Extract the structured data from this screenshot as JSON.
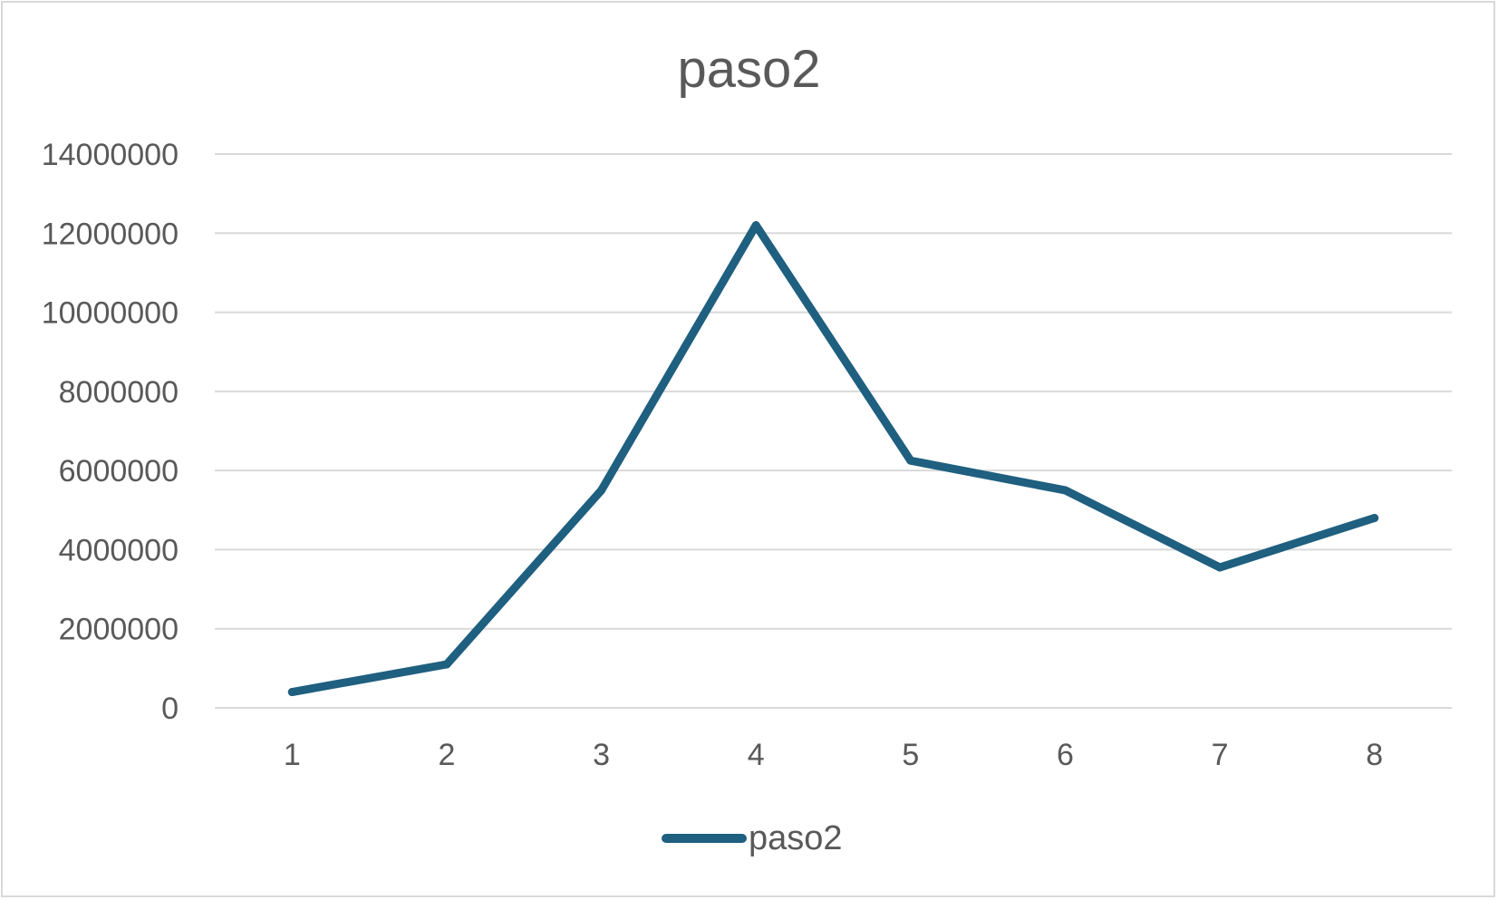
{
  "chart_data": {
    "type": "line",
    "title": "paso2",
    "xlabel": "",
    "ylabel": "",
    "categories": [
      "1",
      "2",
      "3",
      "4",
      "5",
      "6",
      "7",
      "8"
    ],
    "y_ticks": [
      "0",
      "2000000",
      "4000000",
      "6000000",
      "8000000",
      "10000000",
      "12000000",
      "14000000"
    ],
    "ylim": [
      0,
      14000000
    ],
    "grid": true,
    "legend_position": "bottom",
    "series": [
      {
        "name": "paso2",
        "color": "#1f5f7f",
        "values": [
          400000,
          1100000,
          5500000,
          12200000,
          6250000,
          5500000,
          3550000,
          4800000
        ]
      }
    ]
  },
  "colors": {
    "line": "#1f5f7f",
    "grid": "#d9d9d9",
    "text": "#595959"
  }
}
